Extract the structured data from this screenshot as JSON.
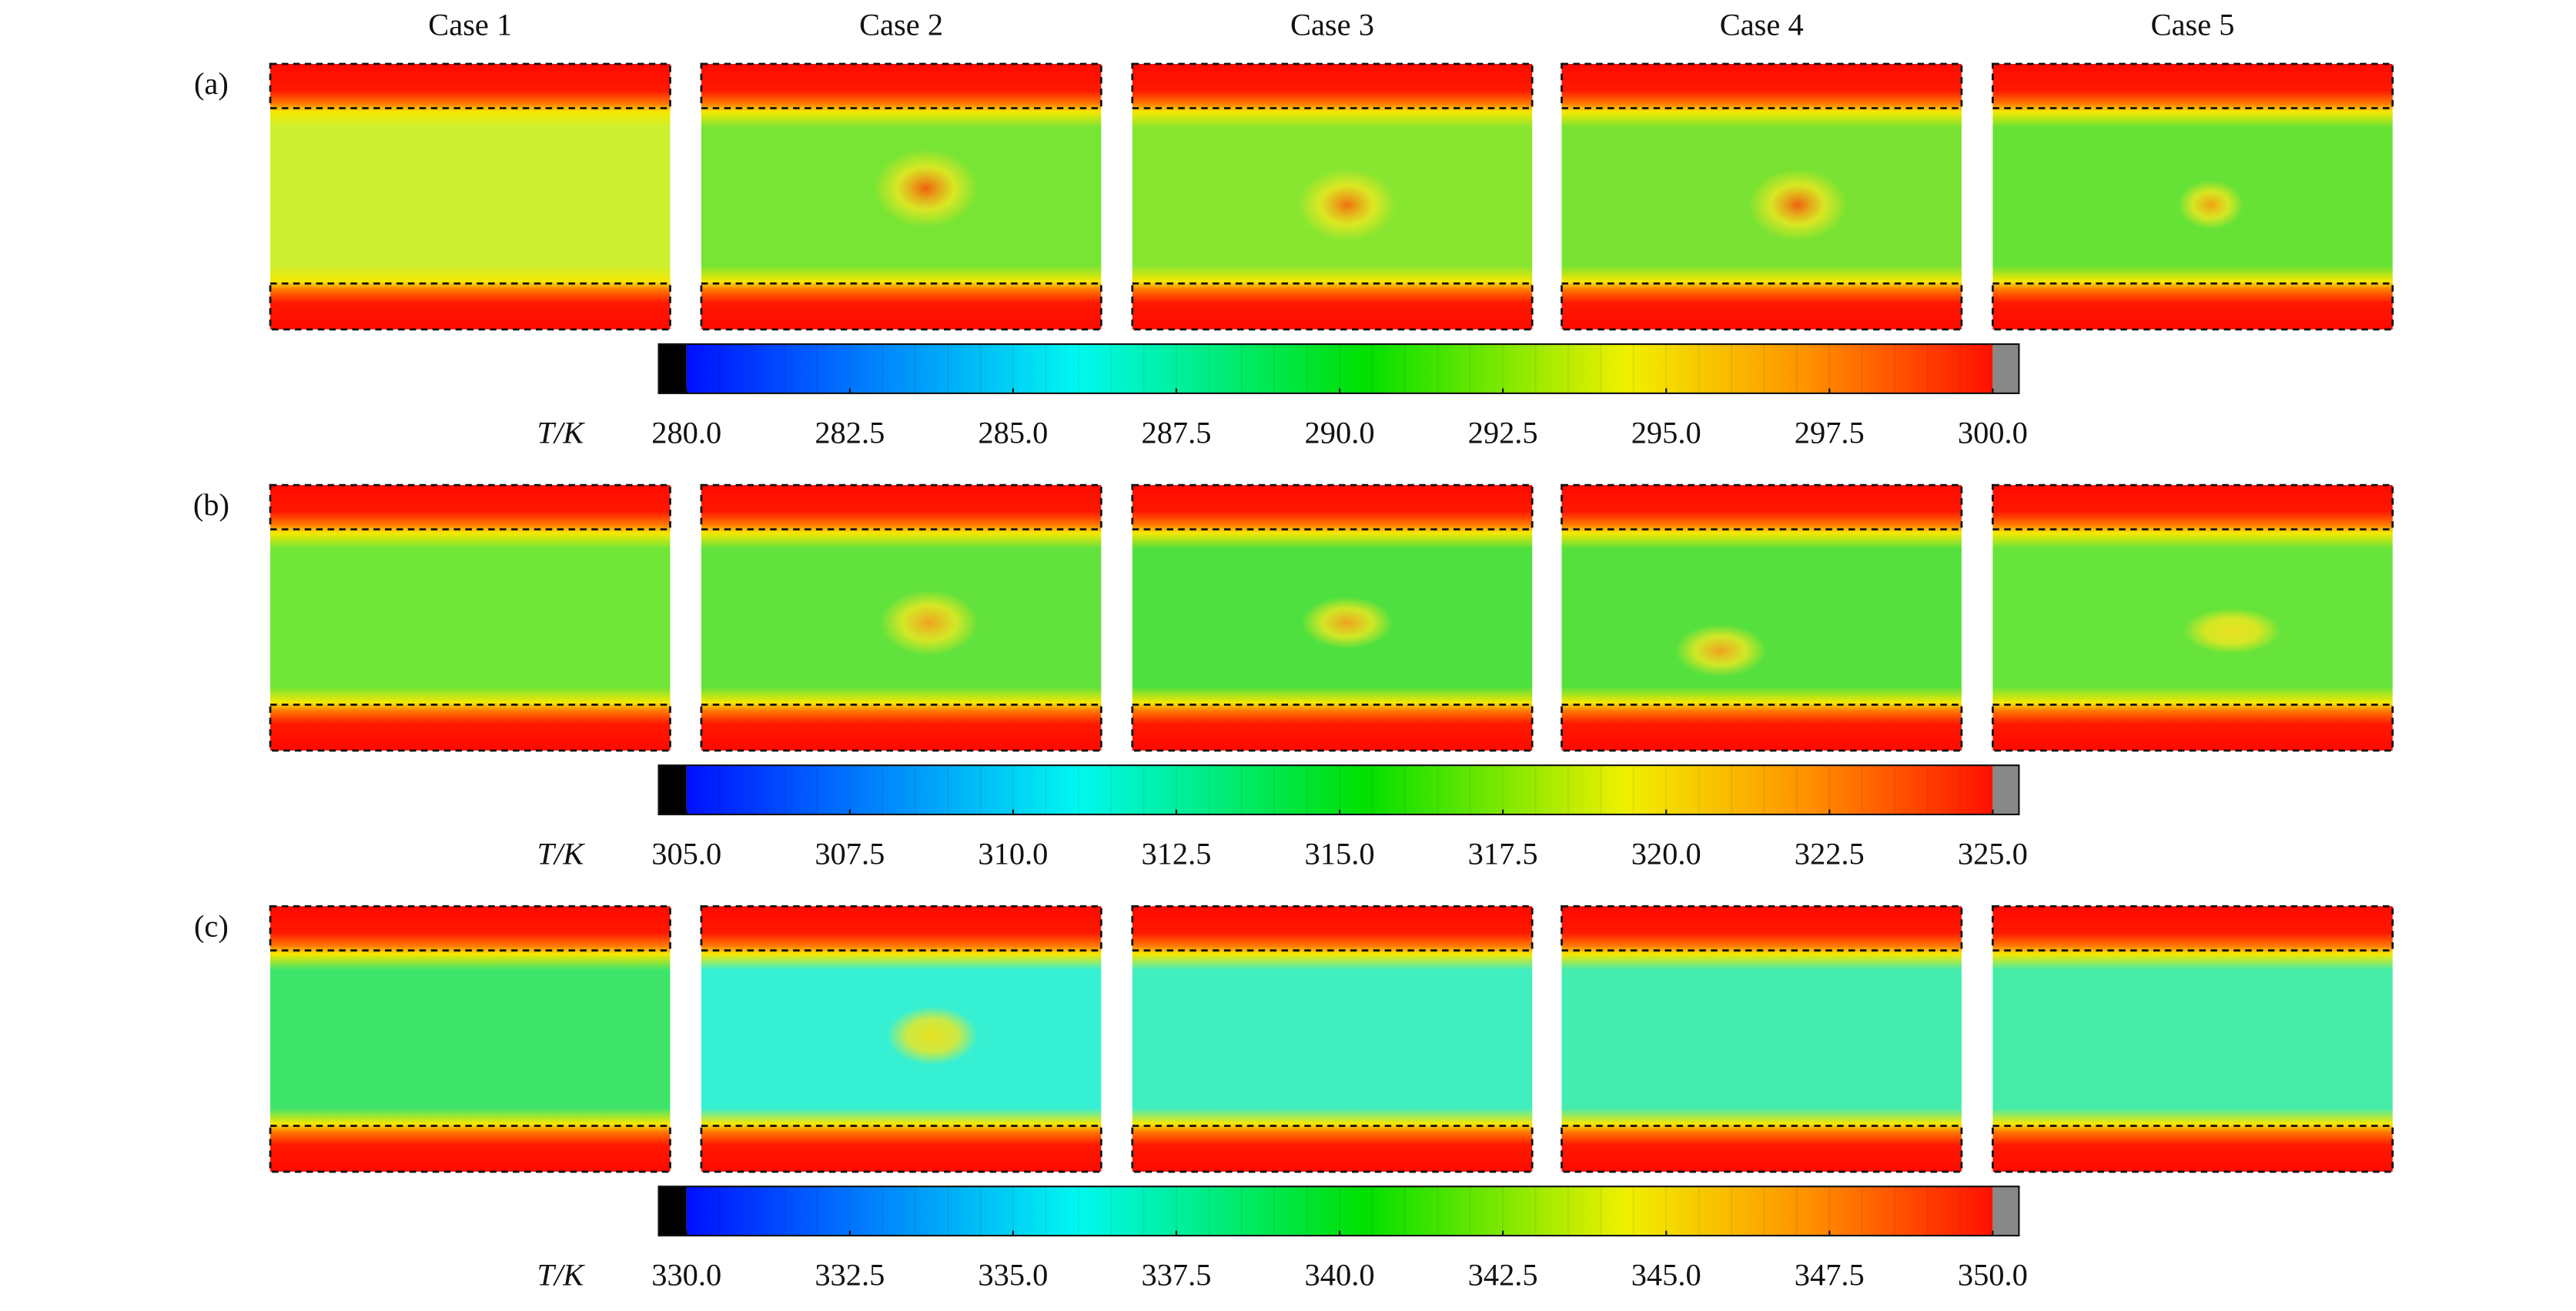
{
  "columns": [
    "Case 1",
    "Case 2",
    "Case 3",
    "Case 4",
    "Case 5"
  ],
  "chart_data": [
    {
      "type": "heatmap",
      "panel": "(a)",
      "colorbar_label": "T/K",
      "clim": [
        280,
        300
      ],
      "cticks": [
        {
          "value": 280,
          "label": "280.0"
        },
        {
          "value": 282.5,
          "label": "282.5"
        },
        {
          "value": 285,
          "label": "285.0"
        },
        {
          "value": 287.5,
          "label": "287.5"
        },
        {
          "value": 290,
          "label": "290.0"
        },
        {
          "value": 292.5,
          "label": "292.5"
        },
        {
          "value": 295,
          "label": "295.0"
        },
        {
          "value": 297.5,
          "label": "297.5"
        },
        {
          "value": 300,
          "label": "300.0"
        }
      ]
    },
    {
      "type": "heatmap",
      "panel": "(b)",
      "colorbar_label": "T/K",
      "clim": [
        305,
        325
      ],
      "cticks": [
        {
          "value": 305,
          "label": "305.0"
        },
        {
          "value": 307.5,
          "label": "307.5"
        },
        {
          "value": 310,
          "label": "310.0"
        },
        {
          "value": 312.5,
          "label": "312.5"
        },
        {
          "value": 315,
          "label": "315.0"
        },
        {
          "value": 317.5,
          "label": "317.5"
        },
        {
          "value": 320,
          "label": "320.0"
        },
        {
          "value": 322.5,
          "label": "322.5"
        },
        {
          "value": 325,
          "label": "325.0"
        }
      ]
    },
    {
      "type": "heatmap",
      "panel": "(c)",
      "colorbar_label": "T/K",
      "clim": [
        330,
        350
      ],
      "cticks": [
        {
          "value": 330,
          "label": "330.0"
        },
        {
          "value": 332.5,
          "label": "332.5"
        },
        {
          "value": 335,
          "label": "335.0"
        },
        {
          "value": 337.5,
          "label": "337.5"
        },
        {
          "value": 340,
          "label": "340.0"
        },
        {
          "value": 342.5,
          "label": "342.5"
        },
        {
          "value": 345,
          "label": "345.0"
        },
        {
          "value": 347.5,
          "label": "347.5"
        },
        {
          "value": 350,
          "label": "350.0"
        }
      ]
    }
  ]
}
